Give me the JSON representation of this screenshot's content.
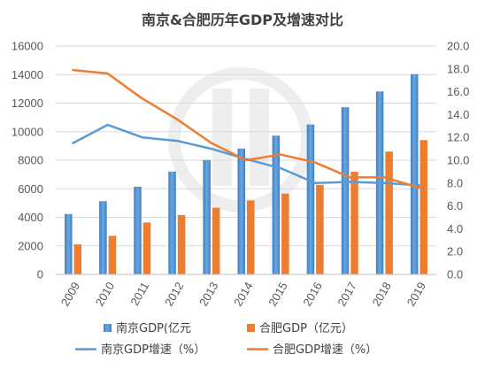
{
  "chart_data": {
    "title": "南京&合肥历年GDP及增速对比",
    "type": "bar",
    "categories": [
      "2009",
      "2010",
      "2011",
      "2012",
      "2013",
      "2014",
      "2015",
      "2016",
      "2017",
      "2018",
      "2019"
    ],
    "y_left": {
      "ylim": [
        0,
        16000
      ],
      "ticks": [
        "0",
        "2000",
        "4000",
        "6000",
        "8000",
        "10000",
        "12000",
        "14000",
        "16000"
      ]
    },
    "y_right": {
      "ylim": [
        0,
        20
      ],
      "ticks": [
        "0.0",
        "2.0",
        "4.0",
        "6.0",
        "8.0",
        "10.0",
        "12.0",
        "14.0",
        "16.0",
        "18.0",
        "20.0"
      ]
    },
    "grid": "horizontal",
    "legend_position": "bottom",
    "series": [
      {
        "name": "南京GDP(亿元",
        "type": "bar",
        "axis": "left",
        "color": "#4e91d2",
        "values": [
          4230,
          5130,
          6145,
          7202,
          8012,
          8820,
          9721,
          10503,
          11715,
          12820,
          14030
        ]
      },
      {
        "name": "合肥GDP（亿元）",
        "type": "bar",
        "axis": "left",
        "color": "#ed7d31",
        "values": [
          2102,
          2702,
          3637,
          4164,
          4673,
          5180,
          5660,
          6274,
          7191,
          8605,
          9409
        ]
      },
      {
        "name": "南京GDP增速（%）",
        "type": "line",
        "axis": "right",
        "color": "#5b9bd5",
        "values": [
          11.5,
          13.1,
          12.0,
          11.7,
          11.0,
          10.1,
          9.3,
          8.0,
          8.1,
          8.0,
          7.8
        ]
      },
      {
        "name": "合肥GDP增速（%）",
        "type": "line",
        "axis": "right",
        "color": "#ed7d31",
        "values": [
          17.9,
          17.6,
          15.4,
          13.6,
          11.5,
          10.0,
          10.5,
          9.8,
          8.5,
          8.5,
          7.6
        ]
      }
    ]
  }
}
